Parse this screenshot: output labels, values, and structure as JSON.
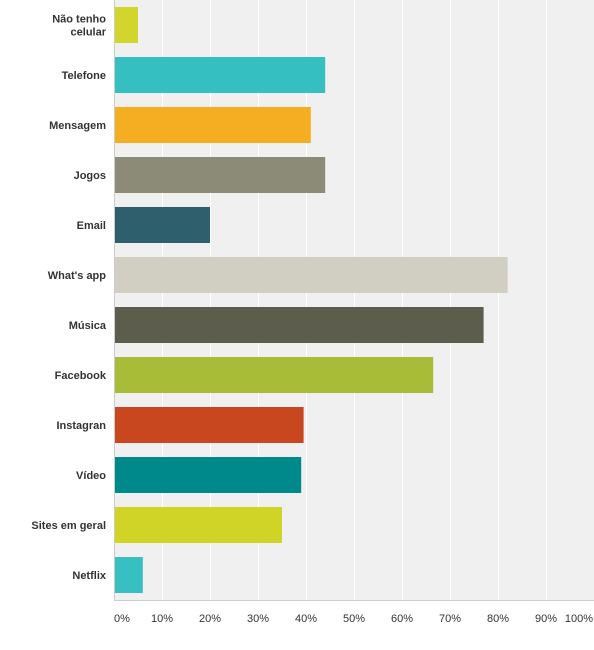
{
  "chart_data": {
    "type": "bar",
    "orientation": "horizontal",
    "categories": [
      [
        "Não tenho",
        "celular"
      ],
      [
        "Telefone"
      ],
      [
        "Mensagem"
      ],
      [
        "Jogos"
      ],
      [
        "Email"
      ],
      [
        "What's app"
      ],
      [
        "Música"
      ],
      [
        "Facebook"
      ],
      [
        "Instagran"
      ],
      [
        "Vídeo"
      ],
      [
        "Sites em geral"
      ],
      [
        "Netflix"
      ]
    ],
    "values": [
      5,
      44,
      41,
      44,
      20,
      82,
      77,
      66.5,
      39.5,
      39,
      35,
      6
    ],
    "colors": [
      "#d1d52c",
      "#35bfc0",
      "#f5ae22",
      "#8b8b78",
      "#2e5f6d",
      "#d0cfc1",
      "#5d5d4d",
      "#a8bc38",
      "#c9471e",
      "#00898a",
      "#cfd427",
      "#38bfc1"
    ],
    "xlim": [
      0,
      100
    ],
    "xticks": [
      "0%",
      "10%",
      "20%",
      "30%",
      "40%",
      "50%",
      "60%",
      "70%",
      "80%",
      "90%",
      "100%"
    ],
    "grid": true,
    "title": "",
    "xlabel": "",
    "ylabel": ""
  }
}
